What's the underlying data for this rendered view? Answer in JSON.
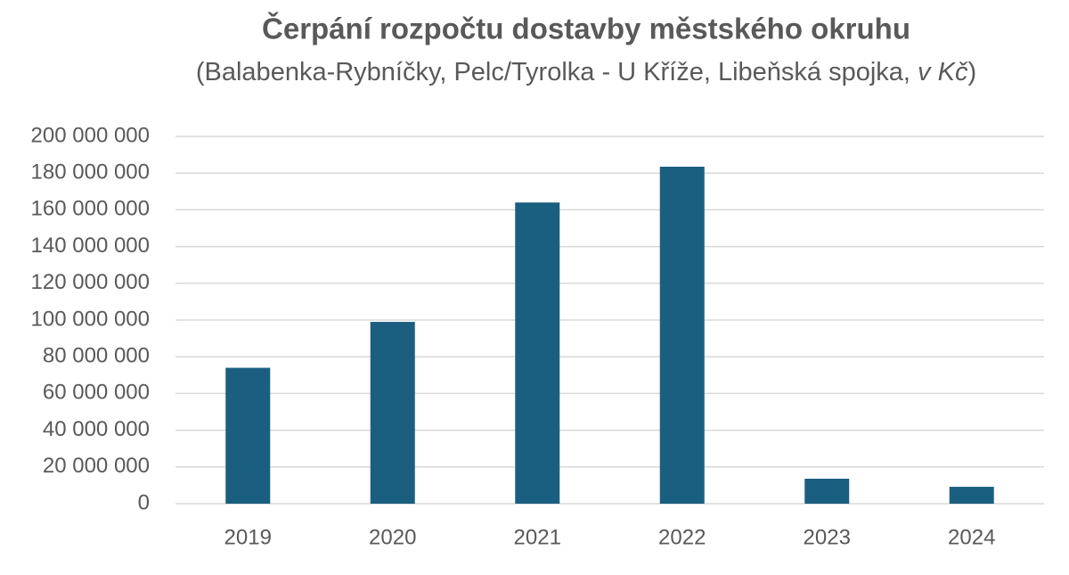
{
  "chart_data": {
    "type": "bar",
    "title": "Čerpání rozpočtu dostavby městského okruhu",
    "subtitle": [
      "(Balabenka-Rybníčky, Pelc/Tyrolka - U Kříže, Libeňská spojka, ",
      "v Kč",
      ")"
    ],
    "categories": [
      "2019",
      "2020",
      "2021",
      "2022",
      "2023",
      "2024"
    ],
    "values": [
      74000000,
      99000000,
      164000000,
      183500000,
      13600000,
      9200000
    ],
    "color": "#1b5f80",
    "ylim": [
      0,
      200000000
    ],
    "yticks": [
      0,
      {
        "value": 20000000,
        "label": "20 000 000"
      },
      {
        "value": 40000000,
        "label": "40 000 000"
      },
      {
        "value": 60000000,
        "label": "60 000 000"
      },
      {
        "value": 80000000,
        "label": "80 000 000"
      },
      {
        "value": 100000000,
        "label": "100 000 000"
      },
      {
        "value": 120000000,
        "label": "120 000 000"
      },
      {
        "value": 140000000,
        "label": "140 000 000"
      },
      {
        "value": 160000000,
        "label": "160 000 000"
      },
      {
        "value": 180000000,
        "label": "180 000 000"
      },
      {
        "value": 200000000,
        "label": "200 000 000"
      }
    ],
    "grid": true
  }
}
